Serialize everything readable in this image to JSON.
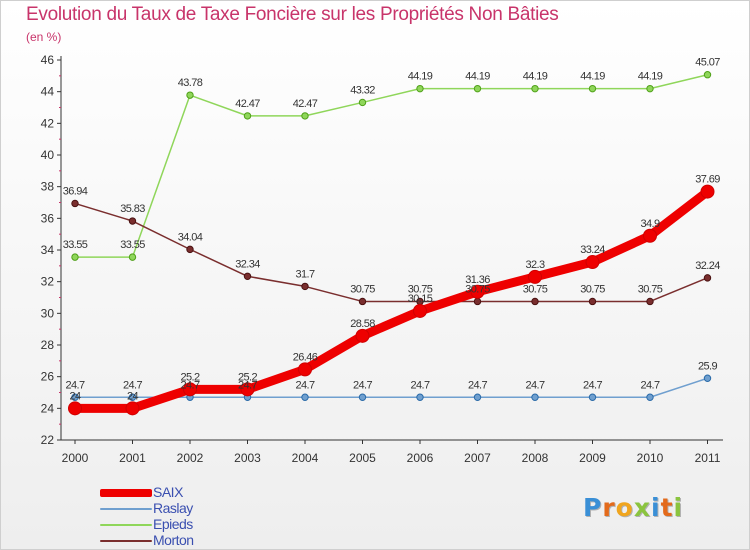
{
  "header": {
    "title": "Evolution du Taux de Taxe Foncière sur les Propriétés Non Bâties",
    "subtitle": "(en %)"
  },
  "logo": {
    "text": "Proxiti",
    "letter_colors": [
      "#3a8fd6",
      "#e36a1b",
      "#f0a51e",
      "#8bc43f",
      "#3a8fd6",
      "#e36a1b",
      "#8bc43f"
    ]
  },
  "chart_data": {
    "type": "line",
    "x": [
      2000,
      2001,
      2002,
      2003,
      2004,
      2005,
      2006,
      2007,
      2008,
      2009,
      2010,
      2011
    ],
    "ylim": [
      22,
      46
    ],
    "yticks": [
      22,
      24,
      26,
      28,
      30,
      32,
      34,
      36,
      38,
      40,
      42,
      44,
      46
    ],
    "grid": false,
    "legend_position": "bottom-left",
    "series": [
      {
        "name": "SAIX",
        "color": "#ee0000",
        "values": [
          24,
          24,
          25.2,
          25.2,
          26.46,
          28.58,
          30.15,
          31.36,
          32.3,
          33.24,
          34.9,
          37.69
        ],
        "labels": [
          "24",
          "24",
          "25.2",
          "25.2",
          "26.46",
          "28.58",
          "30.15",
          "31.36",
          "32.3",
          "33.24",
          "34.9",
          "37.69"
        ]
      },
      {
        "name": "Raslay",
        "color": "#6f9fcf",
        "values": [
          24.7,
          24.7,
          24.7,
          24.7,
          24.7,
          24.7,
          24.7,
          24.7,
          24.7,
          24.7,
          24.7,
          25.9
        ],
        "labels": [
          "24.7",
          "24.7",
          "24.7",
          "24.7",
          "24.7",
          "24.7",
          "24.7",
          "24.7",
          "24.7",
          "24.7",
          "24.7",
          "25.9"
        ]
      },
      {
        "name": "Epieds",
        "color": "#8fd65a",
        "values": [
          33.55,
          33.55,
          43.78,
          42.47,
          42.47,
          43.32,
          44.19,
          44.19,
          44.19,
          44.19,
          44.19,
          45.07
        ],
        "labels": [
          "33.55",
          "33.55",
          "43.78",
          "42.47",
          "42.47",
          "43.32",
          "44.19",
          "44.19",
          "44.19",
          "44.19",
          "44.19",
          "45.07"
        ]
      },
      {
        "name": "Morton",
        "color": "#7a2e2e",
        "values": [
          36.94,
          35.83,
          34.04,
          32.34,
          31.7,
          30.75,
          30.75,
          30.75,
          30.75,
          30.75,
          30.75,
          32.24
        ],
        "labels": [
          "36.94",
          "35.83",
          "34.04",
          "32.34",
          "31.7",
          "30.75",
          "30.75",
          "30.75",
          "30.75",
          "30.75",
          "30.75",
          "32.24"
        ]
      }
    ]
  }
}
